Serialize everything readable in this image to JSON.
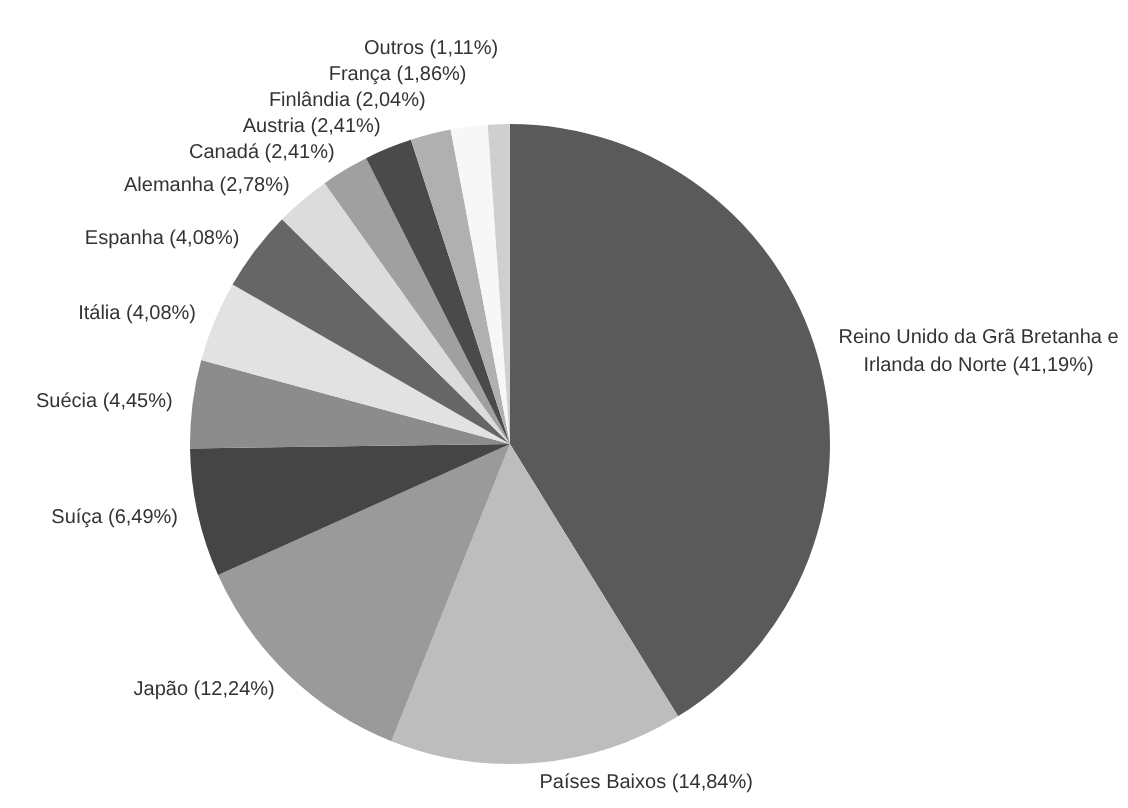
{
  "chart_data": {
    "type": "pie",
    "categories": [
      "Reino Unido da Grã Bretanha e Irlanda do Norte",
      "Países Baixos",
      "Japão",
      "Suíça",
      "Suécia",
      "Itália",
      "Espanha",
      "Alemanha",
      "Canadá",
      "Austria",
      "Finlândia",
      "França",
      "Outros"
    ],
    "values": [
      41.19,
      14.84,
      12.24,
      6.49,
      4.45,
      4.08,
      4.08,
      2.78,
      2.41,
      2.41,
      2.04,
      1.86,
      1.11
    ],
    "value_labels": [
      "(41,19%)",
      "(14,84%)",
      "(12,24%)",
      "(6,49%)",
      "(4,45%)",
      "(4,08%)",
      "(4,08%)",
      "(2,78%)",
      "(2,41%)",
      "(2,41%)",
      "(2,04%)",
      "(1,86%)",
      "(1,11%)"
    ],
    "colors": [
      "#5a5a5a",
      "#bdbdbd",
      "#9a9a9a",
      "#454545",
      "#8c8c8c",
      "#e2e2e2",
      "#666666",
      "#dcdcdc",
      "#a0a0a0",
      "#4a4a4a",
      "#b0b0b0",
      "#f7f7f7",
      "#cfcfcf"
    ],
    "legend": false
  }
}
